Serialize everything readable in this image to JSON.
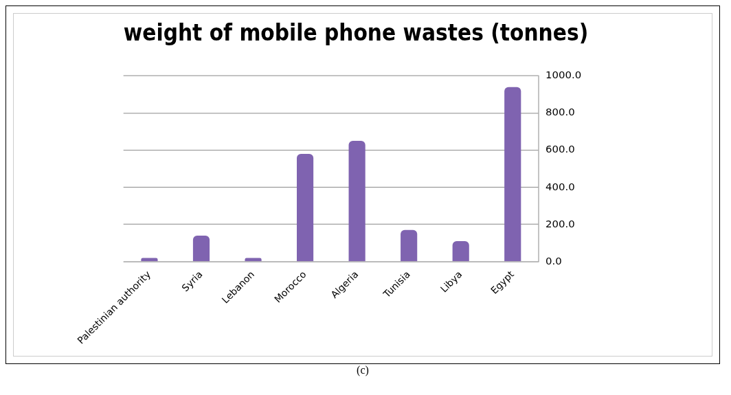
{
  "chart_data": {
    "type": "bar",
    "title": "weight of mobile phone wastes (tonnes)",
    "categories": [
      "Palestinian authority",
      "Syria",
      "Lebanon",
      "Morocco",
      "Algeria",
      "Tunisia",
      "Libya",
      "Egypt"
    ],
    "values": [
      20,
      140,
      20,
      580,
      650,
      170,
      110,
      940
    ],
    "color": "#7f63b0",
    "ylim": [
      0,
      1000
    ],
    "yticks": [
      {
        "value": 0,
        "label": "0.0"
      },
      {
        "value": 200,
        "label": "200.0"
      },
      {
        "value": 400,
        "label": "400.0"
      },
      {
        "value": 600,
        "label": "600.0"
      },
      {
        "value": 800,
        "label": "800.0"
      },
      {
        "value": 1000,
        "label": "1000.0"
      }
    ],
    "grid": "y",
    "annotations": [
      "(c)"
    ]
  }
}
